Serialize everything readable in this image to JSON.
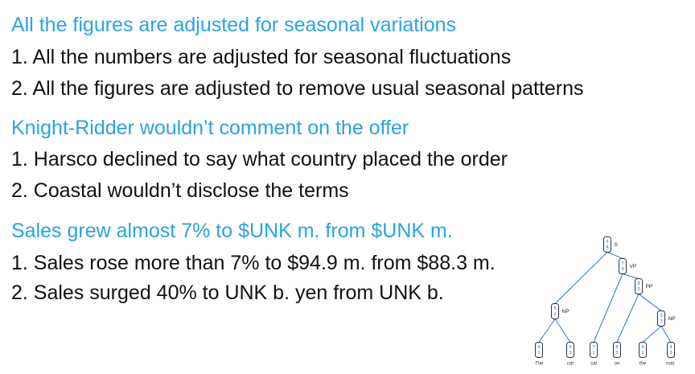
{
  "groups": [
    {
      "heading": "All the figures are adjusted for seasonal variations",
      "items": [
        "1. All the numbers are adjusted for seasonal fluctuations",
        "2. All the figures are adjusted to remove usual seasonal patterns"
      ]
    },
    {
      "heading": "Knight-Ridder wouldn’t comment on the offer",
      "items": [
        "1. Harsco declined to say what country placed the order",
        "2. Coastal wouldn’t disclose the terms"
      ]
    },
    {
      "heading": "Sales grew almost 7% to $UNK m. from $UNK m.",
      "items": [
        "1. Sales rose more than 7% to $94.9 m. from $88.3 m.",
        "2. Sales surged 40% to UNK b. yen from UNK b."
      ]
    }
  ],
  "tree": {
    "nodes": [
      {
        "id": "S",
        "label": "S",
        "vec": [
          "5",
          "4"
        ]
      },
      {
        "id": "NP1",
        "label": "NP",
        "vec": [
          "5",
          "2"
        ]
      },
      {
        "id": "VP",
        "label": "VP",
        "vec": [
          "7",
          "3"
        ]
      },
      {
        "id": "PP",
        "label": "PP",
        "vec": [
          "8",
          "3"
        ]
      },
      {
        "id": "NP2",
        "label": "NP",
        "vec": [
          "3",
          "3"
        ]
      }
    ],
    "leaves": [
      {
        "word": "The",
        "vec": [
          "9",
          "1"
        ]
      },
      {
        "word": "cat",
        "vec": [
          "5",
          "3"
        ]
      },
      {
        "word": "sat",
        "vec": [
          "7",
          "1"
        ]
      },
      {
        "word": "on",
        "vec": [
          "8",
          "5"
        ]
      },
      {
        "word": "the",
        "vec": [
          "9",
          "1"
        ]
      },
      {
        "word": "mat.",
        "vec": [
          "4",
          "3"
        ]
      }
    ]
  }
}
